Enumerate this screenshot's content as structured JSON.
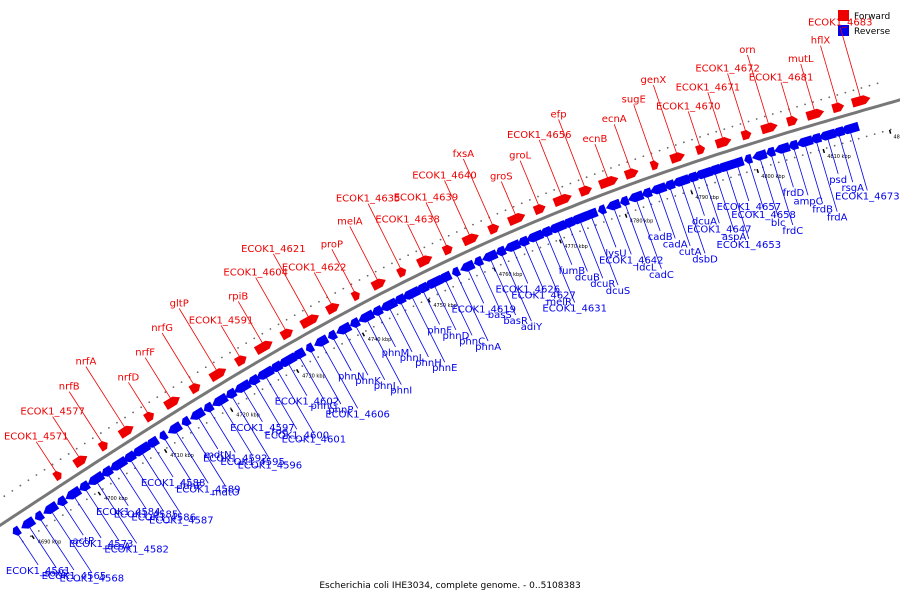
{
  "colors": {
    "forward": "#ee0000",
    "reverse": "#0000ee",
    "backbone": "#777777"
  },
  "legend": [
    {
      "label": "Forward",
      "color": "#ee0000"
    },
    {
      "label": "Reverse",
      "color": "#0000ee"
    }
  ],
  "caption": "Escherichia coli IHE3034, complete genome. - 0..5108383",
  "ticks": [
    "4690 kbp",
    "4700 kbp",
    "4710 kbp",
    "4720 kbp",
    "4730 kbp",
    "4740 kbp",
    "4750 kbp",
    "4760 kbp",
    "4770 kbp",
    "4780 kbp",
    "4790 kbp",
    "4800 kbp",
    "4810 kbp",
    "4820 kbp"
  ],
  "forward_labels": [
    "ECOK1_4571",
    "ECOK1_4577",
    "nrfB",
    "nrfA",
    "nrfD",
    "nrfF",
    "nrfG",
    "gltP",
    "ECOK1_4591",
    "rpiB",
    "ECOK1_4604",
    "ECOK1_4621",
    "ECOK1_4622",
    "proP",
    "melA",
    "ECOK1_4635",
    "ECOK1_4638",
    "ECOK1_4639",
    "ECOK1_4640",
    "fxsA",
    "groS",
    "groL",
    "ECOK1_4656",
    "efp",
    "ecnB",
    "ecnA",
    "sugE",
    "genX",
    "ECOK1_4670",
    "ECOK1_4671",
    "ECOK1_4672",
    "orn",
    "ECOK1_4681",
    "mutL",
    "hflX",
    "ECOK1_4683"
  ],
  "reverse_labels": [
    "ECOK1_4561",
    "soxS",
    "ECOK1_4565",
    "ECOK1_4568",
    "actP",
    "ECOK1_4573",
    "acsA",
    "ECOK1_4582",
    "ECOK1_4584",
    "ECOK1_4585",
    "ECOK1_4586",
    "ECOK1_4587",
    "ECOK1_4588",
    "fdhF",
    "ECOK1_4589",
    "mdtO",
    "mdtN",
    "ECOK1_4592",
    "ECOK1_4595",
    "ECOK1_4596",
    "ECOK1_4597",
    "rpe",
    "ECOK1_4600",
    "ECOK1_4601",
    "ECOK1_4602",
    "phnG",
    "phnP",
    "ECOK1_4606",
    "phnN",
    "phnK",
    "phnJ",
    "phnI",
    "phnM",
    "phnL",
    "phnH",
    "phnE",
    "phnF",
    "phnD",
    "phnC",
    "phnA",
    "ECOK1_4619",
    "basS",
    "basR",
    "adiY",
    "ECOK1_4626",
    "ECOK1_4627",
    "melR",
    "ECOK1_4631",
    "fumB",
    "dcuB",
    "dcuR",
    "dcuS",
    "lysU",
    "ECOK1_4642",
    "ldcL",
    "cadC",
    "cadB",
    "cadA",
    "cutA",
    "dsbD",
    "dcuA",
    "ECOK1_4647",
    "aspA",
    "ECOK1_4653",
    "ECOK1_4657",
    "ECOK1_4658",
    "blc",
    "frdC",
    "frdD",
    "ampC",
    "frdB",
    "frdA",
    "psd",
    "rsgA",
    "ECOK1_4673"
  ]
}
